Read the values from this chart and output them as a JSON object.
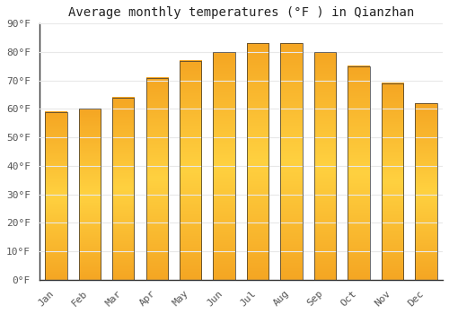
{
  "months": [
    "Jan",
    "Feb",
    "Mar",
    "Apr",
    "May",
    "Jun",
    "Jul",
    "Aug",
    "Sep",
    "Oct",
    "Nov",
    "Dec"
  ],
  "values": [
    59,
    60,
    64,
    71,
    77,
    80,
    83,
    83,
    80,
    75,
    69,
    62
  ],
  "bar_color_top": "#F5A623",
  "bar_color_mid": "#FFD060",
  "bar_color_bottom": "#F5A623",
  "bar_edge_color": "#333333",
  "title": "Average monthly temperatures (°F ) in Qianzhan",
  "ylim": [
    0,
    90
  ],
  "yticks": [
    0,
    10,
    20,
    30,
    40,
    50,
    60,
    70,
    80,
    90
  ],
  "ytick_labels": [
    "0°F",
    "10°F",
    "20°F",
    "30°F",
    "40°F",
    "50°F",
    "60°F",
    "70°F",
    "80°F",
    "90°F"
  ],
  "title_fontsize": 10,
  "tick_fontsize": 8,
  "background_color": "#ffffff",
  "grid_color": "#e8e8e8",
  "axis_color": "#333333",
  "text_color": "#555555"
}
